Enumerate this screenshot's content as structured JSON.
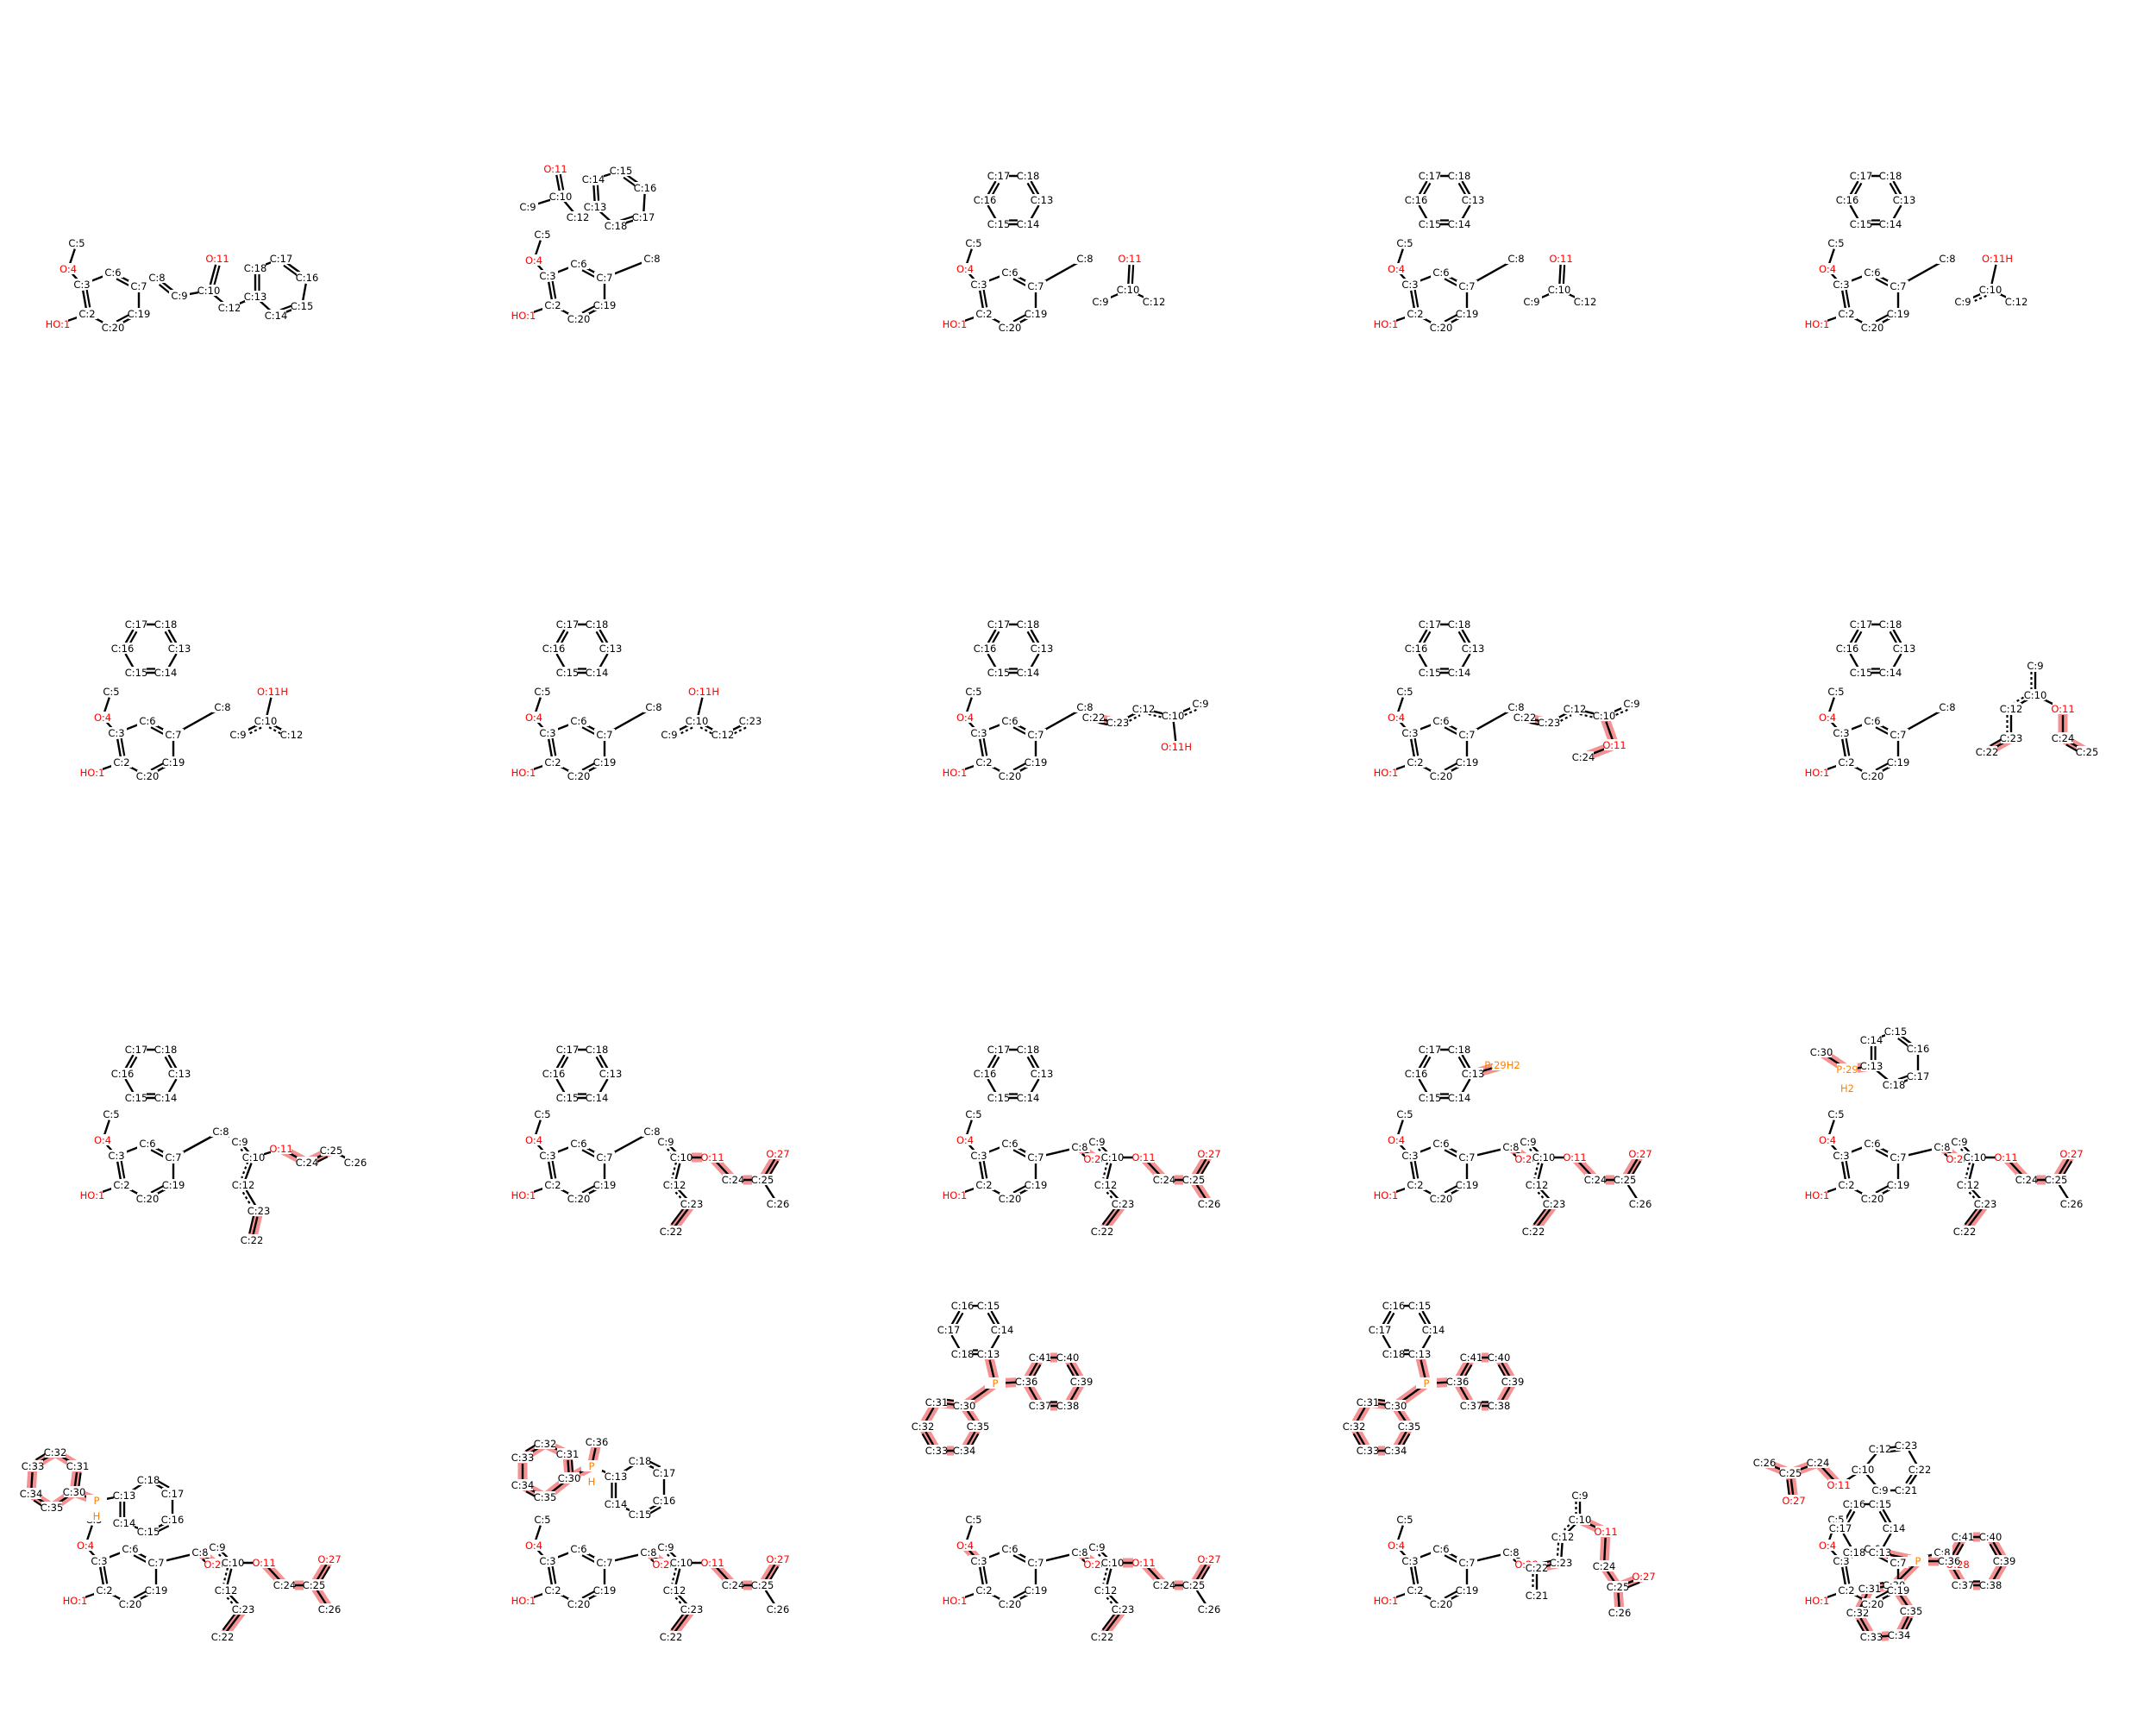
{
  "colors": {
    "carbon": "#000000",
    "oxygen": "#ff0000",
    "phosphorus": "#ff8000",
    "highlight": "#f08080"
  },
  "panels": [
    {
      "atoms": [
        "HO:1",
        "C:2",
        "C:3",
        "O:4",
        "C:5",
        "C:6",
        "C:7",
        "C:8",
        "C:9",
        "C:10",
        "O:11",
        "C:12",
        "C:13",
        "C:14",
        "C:15",
        "C:16",
        "C:17",
        "C:18",
        "C:19",
        "C:20"
      ]
    },
    {
      "atoms": [
        "HO:1",
        "C:2",
        "C:3",
        "O:4",
        "C:5",
        "C:6",
        "C:7",
        "C:8",
        "C:9",
        "C:10",
        "O:11",
        "C:12",
        "C:13",
        "C:14",
        "C:15",
        "C:16",
        "C:17",
        "C:18",
        "C:19",
        "C:20"
      ]
    },
    {
      "atoms": [
        "HO:1",
        "C:2",
        "C:3",
        "O:4",
        "C:5",
        "C:6",
        "C:7",
        "C:8",
        "C:9",
        "C:10",
        "O:11",
        "C:12",
        "C:13",
        "C:14",
        "C:15",
        "C:16",
        "C:17",
        "C:18",
        "C:19",
        "C:20"
      ]
    },
    {
      "atoms": [
        "HO:1",
        "C:2",
        "C:3",
        "O:4",
        "C:5",
        "C:6",
        "C:7",
        "C:8",
        "C:9",
        "C:10",
        "O:11",
        "C:12",
        "C:13",
        "C:14",
        "C:15",
        "C:16",
        "C:17",
        "C:18",
        "C:19",
        "C:20"
      ]
    },
    {
      "atoms": [
        "HO:1",
        "C:2",
        "C:3",
        "O:4",
        "C:5",
        "C:6",
        "C:7",
        "C:8",
        "C:9",
        "C:10",
        "O:11H",
        "C:12",
        "C:13",
        "C:14",
        "C:15",
        "C:16",
        "C:17",
        "C:18",
        "C:19",
        "C:20"
      ]
    },
    {
      "atoms": [
        "HO:1",
        "C:2",
        "C:3",
        "O:4",
        "C:5",
        "C:6",
        "C:7",
        "C:8",
        "C:9",
        "C:10",
        "O:11H",
        "C:12",
        "C:13",
        "C:14",
        "C:15",
        "C:16",
        "C:17",
        "C:18",
        "C:19",
        "C:20"
      ]
    },
    {
      "atoms": [
        "HO:1",
        "C:2",
        "C:3",
        "O:4",
        "C:5",
        "C:6",
        "C:7",
        "C:8",
        "C:9",
        "C:10",
        "O:11H",
        "C:12",
        "C:23",
        "C:13",
        "C:14",
        "C:15",
        "C:16",
        "C:17",
        "C:18",
        "C:19",
        "C:20"
      ]
    },
    {
      "atoms": [
        "HO:1",
        "C:2",
        "C:3",
        "O:4",
        "C:5",
        "C:6",
        "C:7",
        "C:8",
        "C:22",
        "C:23",
        "C:12",
        "C:10",
        "C:9",
        "O:11H",
        "C:13",
        "C:14",
        "C:15",
        "C:16",
        "C:17",
        "C:18",
        "C:19",
        "C:20"
      ]
    },
    {
      "atoms": [
        "HO:1",
        "C:2",
        "C:3",
        "O:4",
        "C:5",
        "C:6",
        "C:7",
        "C:8",
        "C:22",
        "C:23",
        "C:12",
        "C:10",
        "C:9",
        "O:11",
        "C:24",
        "C:13",
        "C:14",
        "C:15",
        "C:16",
        "C:17",
        "C:18",
        "C:19",
        "C:20"
      ]
    },
    {
      "atoms": [
        "HO:1",
        "C:2",
        "C:3",
        "O:4",
        "C:5",
        "C:6",
        "C:7",
        "C:8",
        "C:9",
        "C:10",
        "O:11",
        "C:12",
        "C:22",
        "C:23",
        "C:24",
        "C:25",
        "C:13",
        "C:14",
        "C:15",
        "C:16",
        "C:17",
        "C:18",
        "C:19",
        "C:20"
      ]
    },
    {
      "atoms": [
        "HO:1",
        "C:2",
        "C:3",
        "O:4",
        "C:5",
        "C:6",
        "C:7",
        "C:8",
        "C:9",
        "C:10",
        "O:11",
        "C:12",
        "C:23",
        "C:22",
        "C:24",
        "C:25",
        "C:26",
        "C:13",
        "C:14",
        "C:15",
        "C:16",
        "C:17",
        "C:18",
        "C:19",
        "C:20"
      ]
    },
    {
      "atoms": [
        "HO:1",
        "C:2",
        "C:3",
        "O:4",
        "C:5",
        "C:6",
        "C:7",
        "C:8",
        "C:9",
        "C:10",
        "O:11",
        "C:12",
        "C:23",
        "C:22",
        "C:24",
        "C:25",
        "O:27",
        "C:26",
        "C:13",
        "C:14",
        "C:15",
        "C:16",
        "C:17",
        "C:18",
        "C:19",
        "C:20"
      ]
    },
    {
      "atoms": [
        "HO:1",
        "C:2",
        "C:3",
        "O:4",
        "C:5",
        "C:6",
        "C:7",
        "C:8",
        "O:28",
        "C:9",
        "C:10",
        "O:11",
        "C:12",
        "C:23",
        "C:22",
        "C:24",
        "C:25",
        "O:27",
        "C:26",
        "C:13",
        "C:14",
        "C:15",
        "C:16",
        "C:17",
        "C:18",
        "C:19",
        "C:20"
      ]
    },
    {
      "atoms": [
        "HO:1",
        "C:2",
        "C:3",
        "O:4",
        "C:5",
        "C:6",
        "C:7",
        "C:8",
        "O:28",
        "C:9",
        "C:10",
        "O:11",
        "C:12",
        "C:23",
        "C:22",
        "C:24",
        "C:25",
        "O:27",
        "C:26",
        "C:13",
        "C:14",
        "C:15",
        "C:16",
        "C:17",
        "C:18",
        "P:29H2",
        "C:19",
        "C:20"
      ]
    },
    {
      "atoms": [
        "HO:1",
        "C:2",
        "C:3",
        "O:4",
        "C:5",
        "C:6",
        "C:7",
        "C:8",
        "O:28",
        "C:9",
        "C:10",
        "O:11",
        "C:12",
        "C:23",
        "C:22",
        "C:24",
        "C:25",
        "O:27",
        "C:26",
        "C:30",
        "P:29",
        "H2",
        "C:13",
        "C:14",
        "C:15",
        "C:16",
        "C:17",
        "C:18",
        "C:19",
        "C:20"
      ]
    },
    {
      "atoms": [
        "HO:1",
        "C:2",
        "C:3",
        "O:4",
        "C:5",
        "C:6",
        "C:7",
        "C:8",
        "O:28",
        "C:9",
        "C:10",
        "O:11",
        "C:12",
        "C:23",
        "C:22",
        "C:24",
        "C:25",
        "O:27",
        "C:26",
        "P",
        "H",
        "C:30",
        "C:31",
        "C:32",
        "C:33",
        "C:34",
        "C:35",
        "C:13",
        "C:14",
        "C:15",
        "C:16",
        "C:17",
        "C:18",
        "C:19",
        "C:20"
      ]
    },
    {
      "atoms": [
        "HO:1",
        "C:2",
        "C:3",
        "O:4",
        "C:5",
        "C:6",
        "C:7",
        "C:8",
        "O:28",
        "C:9",
        "C:10",
        "O:11",
        "C:12",
        "C:23",
        "C:22",
        "C:24",
        "C:25",
        "O:27",
        "C:26",
        "C:36",
        "P",
        "H",
        "C:30",
        "C:31",
        "C:32",
        "C:33",
        "C:34",
        "C:35",
        "C:13",
        "C:14",
        "C:15",
        "C:16",
        "C:17",
        "C:18",
        "C:19",
        "C:20"
      ]
    },
    {
      "atoms": [
        "HO:1",
        "C:2",
        "C:3",
        "O:4",
        "C:5",
        "C:6",
        "C:7",
        "C:8",
        "O:28",
        "C:9",
        "C:10",
        "O:11",
        "C:12",
        "C:23",
        "C:22",
        "C:24",
        "C:25",
        "O:27",
        "C:26",
        "C:13",
        "C:14",
        "C:15",
        "C:16",
        "C:17",
        "C:18",
        "P",
        "C:30",
        "C:31",
        "C:32",
        "C:33",
        "C:34",
        "C:35",
        "C:36",
        "C:37",
        "C:38",
        "C:39",
        "C:40",
        "C:41",
        "C:19",
        "C:20"
      ]
    },
    {
      "atoms": [
        "HO:1",
        "C:2",
        "C:3",
        "O:4",
        "C:5",
        "C:6",
        "C:7",
        "C:8",
        "O:28",
        "C:9",
        "C:10",
        "O:11",
        "C:12",
        "C:23",
        "C:22",
        "C:21",
        "C:24",
        "C:25",
        "O:27",
        "C:26",
        "C:13",
        "C:14",
        "C:15",
        "C:16",
        "C:17",
        "C:18",
        "P",
        "C:30",
        "C:31",
        "C:32",
        "C:33",
        "C:34",
        "C:35",
        "C:36",
        "C:37",
        "C:38",
        "C:39",
        "C:40",
        "C:41",
        "C:19",
        "C:20"
      ]
    },
    {
      "atoms": [
        "HO:1",
        "C:2",
        "C:3",
        "O:4",
        "C:5",
        "C:6",
        "C:7",
        "C:8",
        "O:28",
        "C:26",
        "C:25",
        "O:27",
        "C:24",
        "O:11",
        "C:10",
        "C:9",
        "C:12",
        "C:23",
        "C:22",
        "C:21",
        "C:13",
        "C:14",
        "C:15",
        "C:16",
        "C:17",
        "C:18",
        "P",
        "C:30",
        "C:31",
        "C:32",
        "C:33",
        "C:34",
        "C:35",
        "C:36",
        "C:37",
        "C:38",
        "C:39",
        "C:40",
        "C:41",
        "C:19",
        "C:20"
      ]
    }
  ]
}
